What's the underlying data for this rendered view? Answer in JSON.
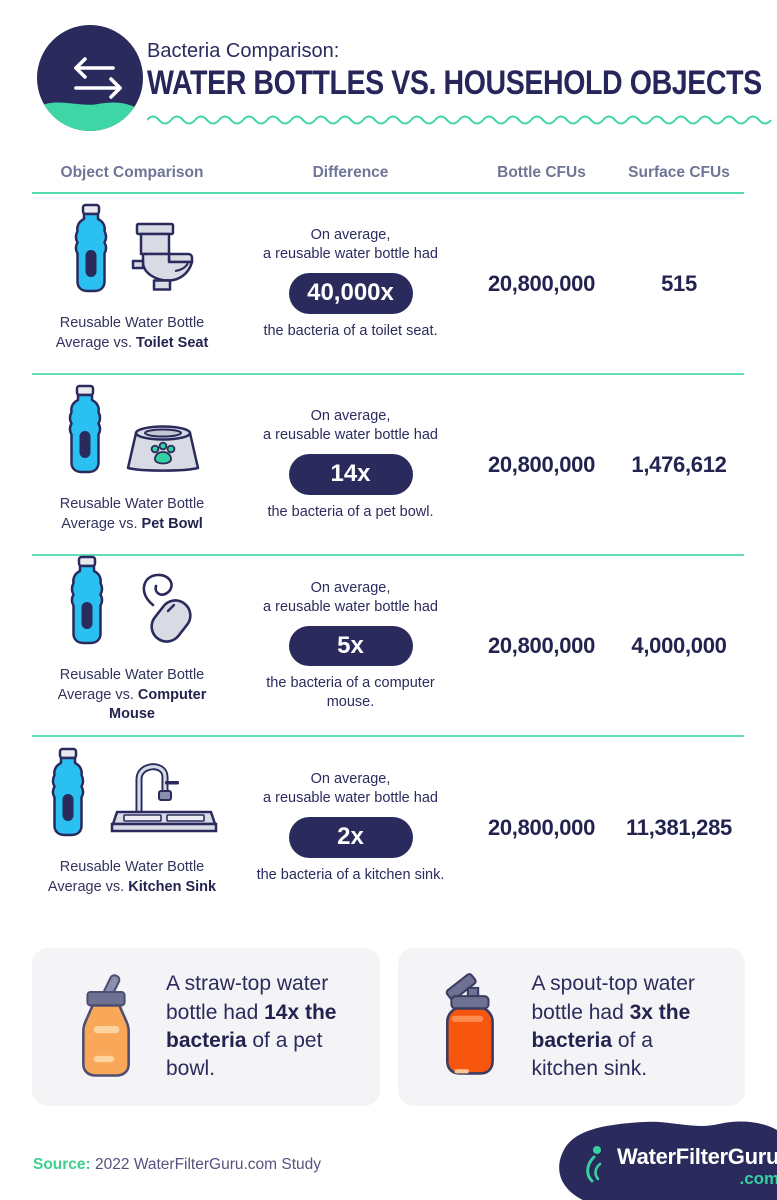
{
  "header": {
    "eyebrow": "Bacteria Comparison:",
    "title": "WATER BOTTLES VS. HOUSEHOLD OBJECTS",
    "logo_icon": "compare-arrows-icon"
  },
  "colors": {
    "navy": "#2a2a5c",
    "mint_accent": "#3fd6a5",
    "separator_teal": "#63debb",
    "bottle_cyan": "#2ac0f2",
    "icon_gray": "#d9dbe4",
    "straw_bottle_orange": "#f9a85a",
    "spout_bottle_orange": "#f8560f",
    "card_bg": "#f4f4f6",
    "header_label_slate": "#6f7596",
    "source_green": "#3ecf8e"
  },
  "table": {
    "columns": [
      "Object Comparison",
      "Difference",
      "Bottle CFUs",
      "Surface CFUs"
    ],
    "rows": [
      {
        "icons": [
          "water-bottle-icon",
          "toilet-icon"
        ],
        "caption_prefix": "Reusable Water Bottle Average vs. ",
        "caption_object": "Toilet Seat",
        "diff_line1": "On average,",
        "diff_line2": "a reusable water bottle had",
        "multiplier_label": "40,000x",
        "diff_outro": "the bacteria of a toilet seat.",
        "bottle_cfus": "20,800,000",
        "surface_cfus": "515"
      },
      {
        "icons": [
          "water-bottle-icon",
          "pet-bowl-icon"
        ],
        "caption_prefix": "Reusable Water Bottle Average vs. ",
        "caption_object": "Pet Bowl",
        "diff_line1": "On average,",
        "diff_line2": "a reusable water bottle had",
        "multiplier_label": "14x",
        "diff_outro": "the bacteria of a pet bowl.",
        "bottle_cfus": "20,800,000",
        "surface_cfus": "1,476,612"
      },
      {
        "icons": [
          "water-bottle-icon",
          "computer-mouse-icon"
        ],
        "caption_prefix": "Reusable Water Bottle Average vs. ",
        "caption_object": "Computer Mouse",
        "diff_line1": "On average,",
        "diff_line2": "a reusable water bottle had",
        "multiplier_label": "5x",
        "diff_outro": "the bacteria of a computer mouse.",
        "bottle_cfus": "20,800,000",
        "surface_cfus": "4,000,000"
      },
      {
        "icons": [
          "water-bottle-icon",
          "kitchen-sink-icon"
        ],
        "caption_prefix": "Reusable Water Bottle Average vs. ",
        "caption_object": "Kitchen Sink",
        "diff_line1": "On average,",
        "diff_line2": "a reusable water bottle had",
        "multiplier_label": "2x",
        "diff_outro": "the bacteria of a kitchen sink.",
        "bottle_cfus": "20,800,000",
        "surface_cfus": "11,381,285"
      }
    ]
  },
  "callouts": [
    {
      "icon": "straw-top-bottle-icon",
      "prefix": "A straw-top water bottle had ",
      "bold": "14x the bacteria",
      "suffix": " of a pet bowl."
    },
    {
      "icon": "spout-top-bottle-icon",
      "prefix": "A spout-top water bottle had ",
      "bold": "3x the bacteria",
      "suffix": " of a kitchen sink."
    }
  ],
  "footer": {
    "source_label": "Source:",
    "source_text": " 2022 WaterFilterGuru.com Study",
    "brand_main": "WaterFilterGuru",
    "brand_suffix": ".com",
    "brand_icon": "water-drop-icon"
  },
  "chart_data": {
    "type": "table",
    "title": "Bacteria Comparison: Water Bottles vs. Household Objects",
    "columns": [
      "Object Comparison",
      "Difference (bottle vs. object)",
      "Bottle CFUs",
      "Surface CFUs"
    ],
    "rows": [
      {
        "object": "Toilet Seat",
        "multiplier": 40000,
        "bottle_cfus": 20800000,
        "surface_cfus": 515
      },
      {
        "object": "Pet Bowl",
        "multiplier": 14,
        "bottle_cfus": 20800000,
        "surface_cfus": 1476612
      },
      {
        "object": "Computer Mouse",
        "multiplier": 5,
        "bottle_cfus": 20800000,
        "surface_cfus": 4000000
      },
      {
        "object": "Kitchen Sink",
        "multiplier": 2,
        "bottle_cfus": 20800000,
        "surface_cfus": 11381285
      }
    ],
    "notes": [
      "A straw-top water bottle had 14x the bacteria of a pet bowl.",
      "A spout-top water bottle had 3x the bacteria of a kitchen sink."
    ],
    "source": "2022 WaterFilterGuru.com Study"
  }
}
